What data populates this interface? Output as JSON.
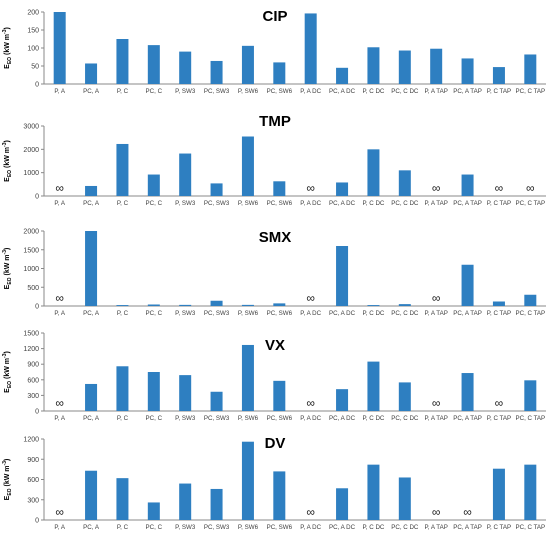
{
  "colors": {
    "bar": "#2e7fc1",
    "axis": "#888888"
  },
  "categories": [
    "P, A",
    "PC, A",
    "P, C",
    "PC, C",
    "P, SW3",
    "PC, SW3",
    "P, SW6",
    "PC, SW6",
    "P, A DC",
    "PC, A DC",
    "P, C DC",
    "PC, C DC",
    "P, A TAP",
    "PC, A TAP",
    "P, C TAP",
    "PC, C TAP"
  ],
  "infinity_symbol": "∞",
  "chart_data": [
    {
      "type": "bar",
      "title": "CIP",
      "ylabel_main": "E",
      "ylabel_sub": "EO",
      "ylabel_unit": " (kW m",
      "ylabel_exp": "-3",
      "ylabel_close": ")",
      "ylim": [
        0,
        200
      ],
      "yticks": [
        0,
        50,
        100,
        150,
        200
      ],
      "values": [
        200,
        57,
        125,
        108,
        90,
        64,
        106,
        60,
        196,
        45,
        102,
        93,
        98,
        71,
        47,
        82
      ]
    },
    {
      "type": "bar",
      "title": "TMP",
      "ylabel_main": "E",
      "ylabel_sub": "EO",
      "ylabel_unit": " (kW m",
      "ylabel_exp": "-3",
      "ylabel_close": ")",
      "ylim": [
        0,
        3000
      ],
      "yticks": [
        0,
        1000,
        2000,
        3000
      ],
      "values": [
        null,
        430,
        2230,
        920,
        1820,
        540,
        2550,
        630,
        null,
        580,
        2000,
        1100,
        null,
        920,
        null,
        null
      ]
    },
    {
      "type": "bar",
      "title": "SMX",
      "ylabel_main": "E",
      "ylabel_sub": "EO",
      "ylabel_unit": " (kW m",
      "ylabel_exp": "-3",
      "ylabel_close": ")",
      "ylim": [
        0,
        2000
      ],
      "yticks": [
        0,
        500,
        1000,
        1500,
        2000
      ],
      "values": [
        null,
        2000,
        25,
        40,
        30,
        140,
        30,
        70,
        null,
        1600,
        25,
        50,
        null,
        1100,
        120,
        300
      ]
    },
    {
      "type": "bar",
      "title": "VX",
      "ylabel_main": "E",
      "ylabel_sub": "EO",
      "ylabel_unit": " (kW m",
      "ylabel_exp": "-3",
      "ylabel_close": ")",
      "ylim": [
        0,
        1500
      ],
      "yticks": [
        0,
        300,
        600,
        900,
        1200,
        1500
      ],
      "values": [
        null,
        520,
        860,
        750,
        690,
        370,
        1270,
        580,
        null,
        420,
        950,
        550,
        null,
        730,
        null,
        590
      ]
    },
    {
      "type": "bar",
      "title": "DV",
      "ylabel_main": "E",
      "ylabel_sub": "EO",
      "ylabel_unit": " (kW m",
      "ylabel_exp": "-3",
      "ylabel_close": ")",
      "ylim": [
        0,
        1200
      ],
      "yticks": [
        0,
        300,
        600,
        900,
        1200
      ],
      "values": [
        null,
        730,
        620,
        260,
        540,
        460,
        1160,
        720,
        null,
        470,
        820,
        630,
        null,
        null,
        760,
        820
      ]
    }
  ]
}
